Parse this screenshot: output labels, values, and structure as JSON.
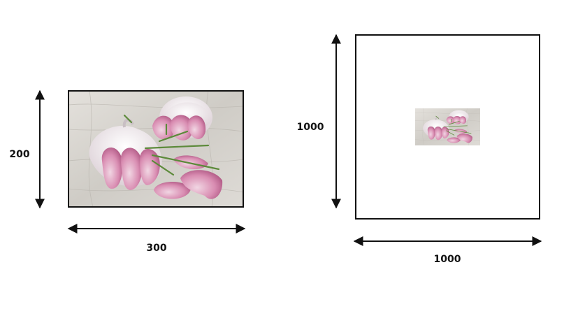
{
  "left_figure": {
    "width_label": "300",
    "height_label": "200",
    "image": "garlic-bulbs-with-rosemary-photo"
  },
  "right_figure": {
    "width_label": "1000",
    "height_label": "1000",
    "image": "garlic-bulbs-with-rosemary-photo-small"
  },
  "colors": {
    "stroke": "#111111",
    "wood": "#d9d6d0",
    "garlic_pink": "#c76b9a",
    "garlic_white": "#efe7ea",
    "rosemary": "#5c8a3a"
  }
}
